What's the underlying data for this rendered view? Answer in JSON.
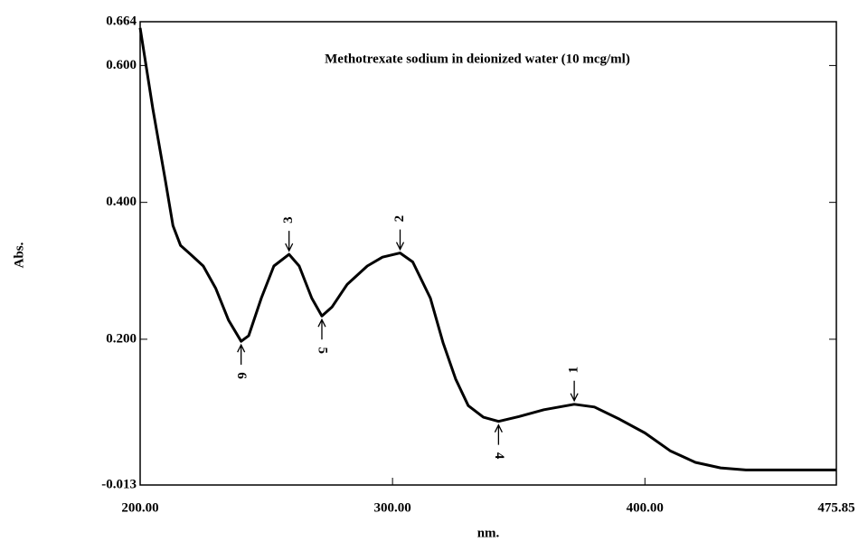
{
  "chart_data": {
    "type": "line",
    "title": "Methotrexate sodium in deionized water (10 mcg/ml)",
    "x_label": "nm.",
    "y_label": "Abs.",
    "x": [
      200,
      205,
      210,
      213,
      216,
      220,
      225,
      230,
      235,
      240,
      243,
      248,
      253,
      259,
      263,
      268,
      272,
      276,
      282,
      290,
      296,
      303,
      308,
      315,
      320,
      325,
      330,
      336,
      342,
      350,
      360,
      372,
      380,
      390,
      400,
      410,
      420,
      430,
      440,
      475.85
    ],
    "series": [
      {
        "color": "#000000",
        "values": [
          0.655,
          0.537,
          0.432,
          0.366,
          0.337,
          0.324,
          0.307,
          0.274,
          0.228,
          0.197,
          0.205,
          0.26,
          0.307,
          0.324,
          0.307,
          0.26,
          0.234,
          0.247,
          0.28,
          0.307,
          0.32,
          0.326,
          0.313,
          0.26,
          0.195,
          0.142,
          0.103,
          0.086,
          0.08,
          0.087,
          0.097,
          0.105,
          0.101,
          0.083,
          0.063,
          0.037,
          0.02,
          0.012,
          0.009,
          0.009
        ]
      }
    ],
    "xlim": [
      200,
      475.85
    ],
    "xticks": [
      {
        "value": 200,
        "label": "200.00"
      },
      {
        "value": 300,
        "label": "300.00"
      },
      {
        "value": 400,
        "label": "400.00"
      },
      475.85
    ],
    "ylim": [
      -0.013,
      0.664
    ],
    "yticks": [
      -0.013,
      {
        "value": 0.2,
        "label": "0.200"
      },
      {
        "value": 0.4,
        "label": "0.400"
      },
      {
        "value": 0.6,
        "label": "0.600"
      },
      0.664
    ],
    "annotations": [
      {
        "label": "1",
        "x": 372,
        "y": 0.105,
        "side": "above"
      },
      {
        "label": "2",
        "x": 303,
        "y": 0.326,
        "side": "above"
      },
      {
        "label": "3",
        "x": 259,
        "y": 0.324,
        "side": "above"
      },
      {
        "label": "4",
        "x": 342,
        "y": 0.08,
        "side": "below"
      },
      {
        "label": "5",
        "x": 272,
        "y": 0.234,
        "side": "below"
      },
      {
        "label": "6",
        "x": 240,
        "y": 0.197,
        "side": "below"
      }
    ]
  }
}
